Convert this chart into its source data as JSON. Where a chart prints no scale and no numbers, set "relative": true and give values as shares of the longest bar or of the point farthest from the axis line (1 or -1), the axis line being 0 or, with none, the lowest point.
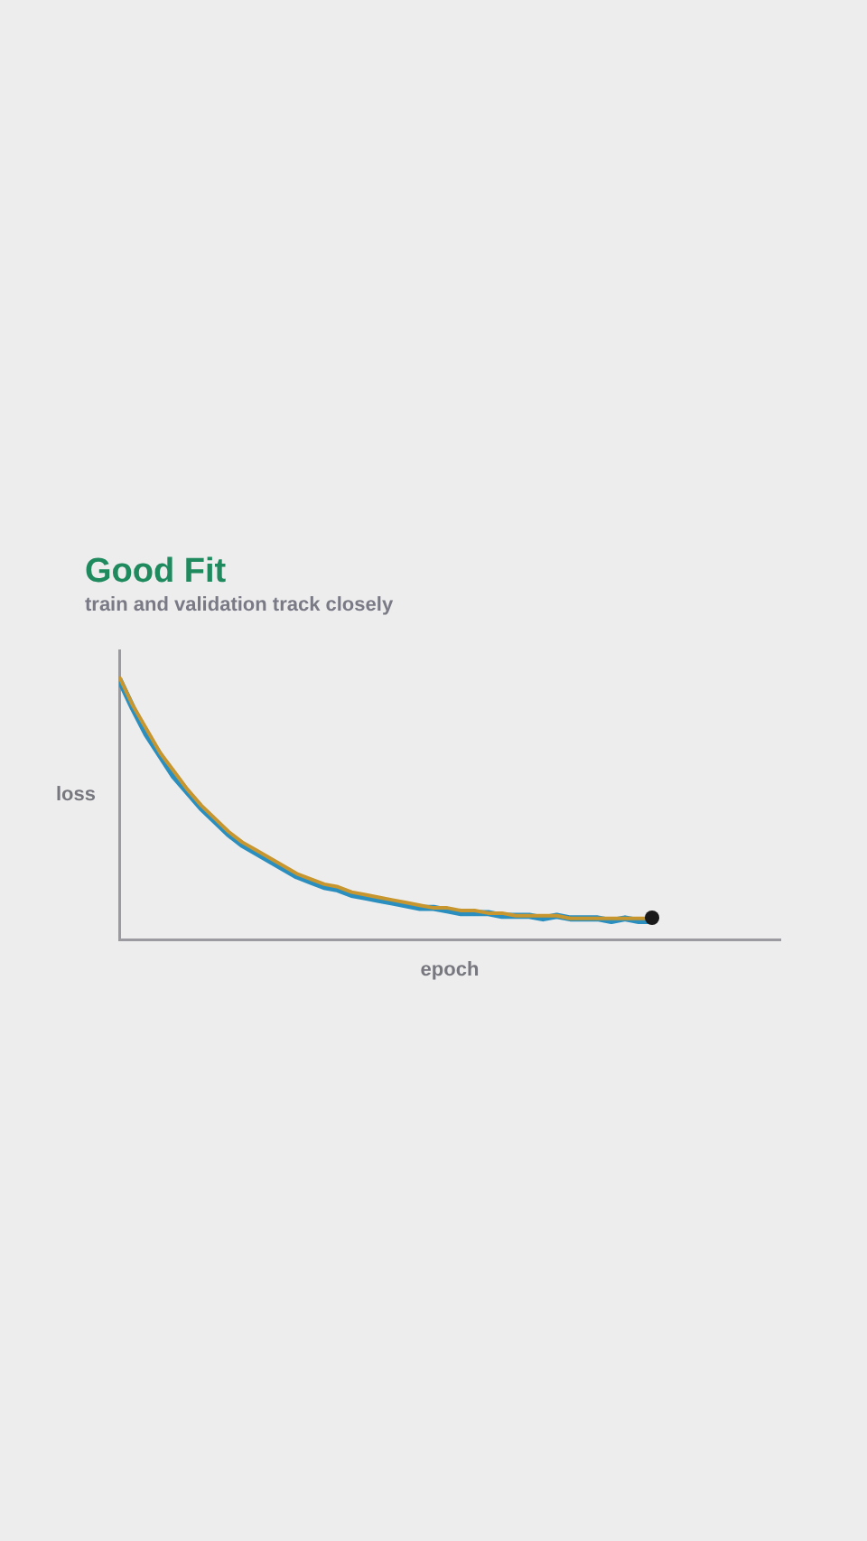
{
  "chart_data": {
    "type": "line",
    "title": "Good Fit",
    "subtitle": "train and validation track closely",
    "xlabel": "epoch",
    "ylabel": "loss",
    "relative": true,
    "tick_labels": false,
    "grid": false,
    "legend": false,
    "marker": "none",
    "categories": [
      null,
      null,
      null,
      null,
      null,
      null,
      null,
      null,
      null,
      null,
      null,
      null,
      null,
      null,
      null,
      null,
      null,
      null,
      null,
      null,
      null,
      null,
      null,
      null,
      null,
      null,
      null,
      null,
      null,
      null,
      null,
      null,
      null,
      null,
      null,
      null,
      null,
      null,
      null,
      null
    ],
    "series": [
      {
        "color": "#2a8fbf",
        "values": [
          0.99,
          0.88,
          0.78,
          0.7,
          0.62,
          0.56,
          0.5,
          0.45,
          0.4,
          0.36,
          0.33,
          0.3,
          0.27,
          0.24,
          0.22,
          0.2,
          0.19,
          0.17,
          0.16,
          0.15,
          0.14,
          0.13,
          0.12,
          0.12,
          0.11,
          0.1,
          0.1,
          0.1,
          0.09,
          0.09,
          0.09,
          0.08,
          0.09,
          0.08,
          0.08,
          0.08,
          0.07,
          0.08,
          0.07,
          0.07
        ]
      },
      {
        "color": "#c8962e",
        "values": [
          1,
          0.89,
          0.8,
          0.71,
          0.64,
          0.57,
          0.51,
          0.46,
          0.41,
          0.37,
          0.34,
          0.31,
          0.28,
          0.25,
          0.23,
          0.21,
          0.2,
          0.18,
          0.17,
          0.16,
          0.15,
          0.14,
          0.13,
          0.12,
          0.12,
          0.11,
          0.11,
          0.1,
          0.1,
          0.09,
          0.09,
          0.09,
          0.09,
          0.08,
          0.08,
          0.08,
          0.08,
          0.08,
          0.08,
          0.08
        ]
      }
    ]
  }
}
